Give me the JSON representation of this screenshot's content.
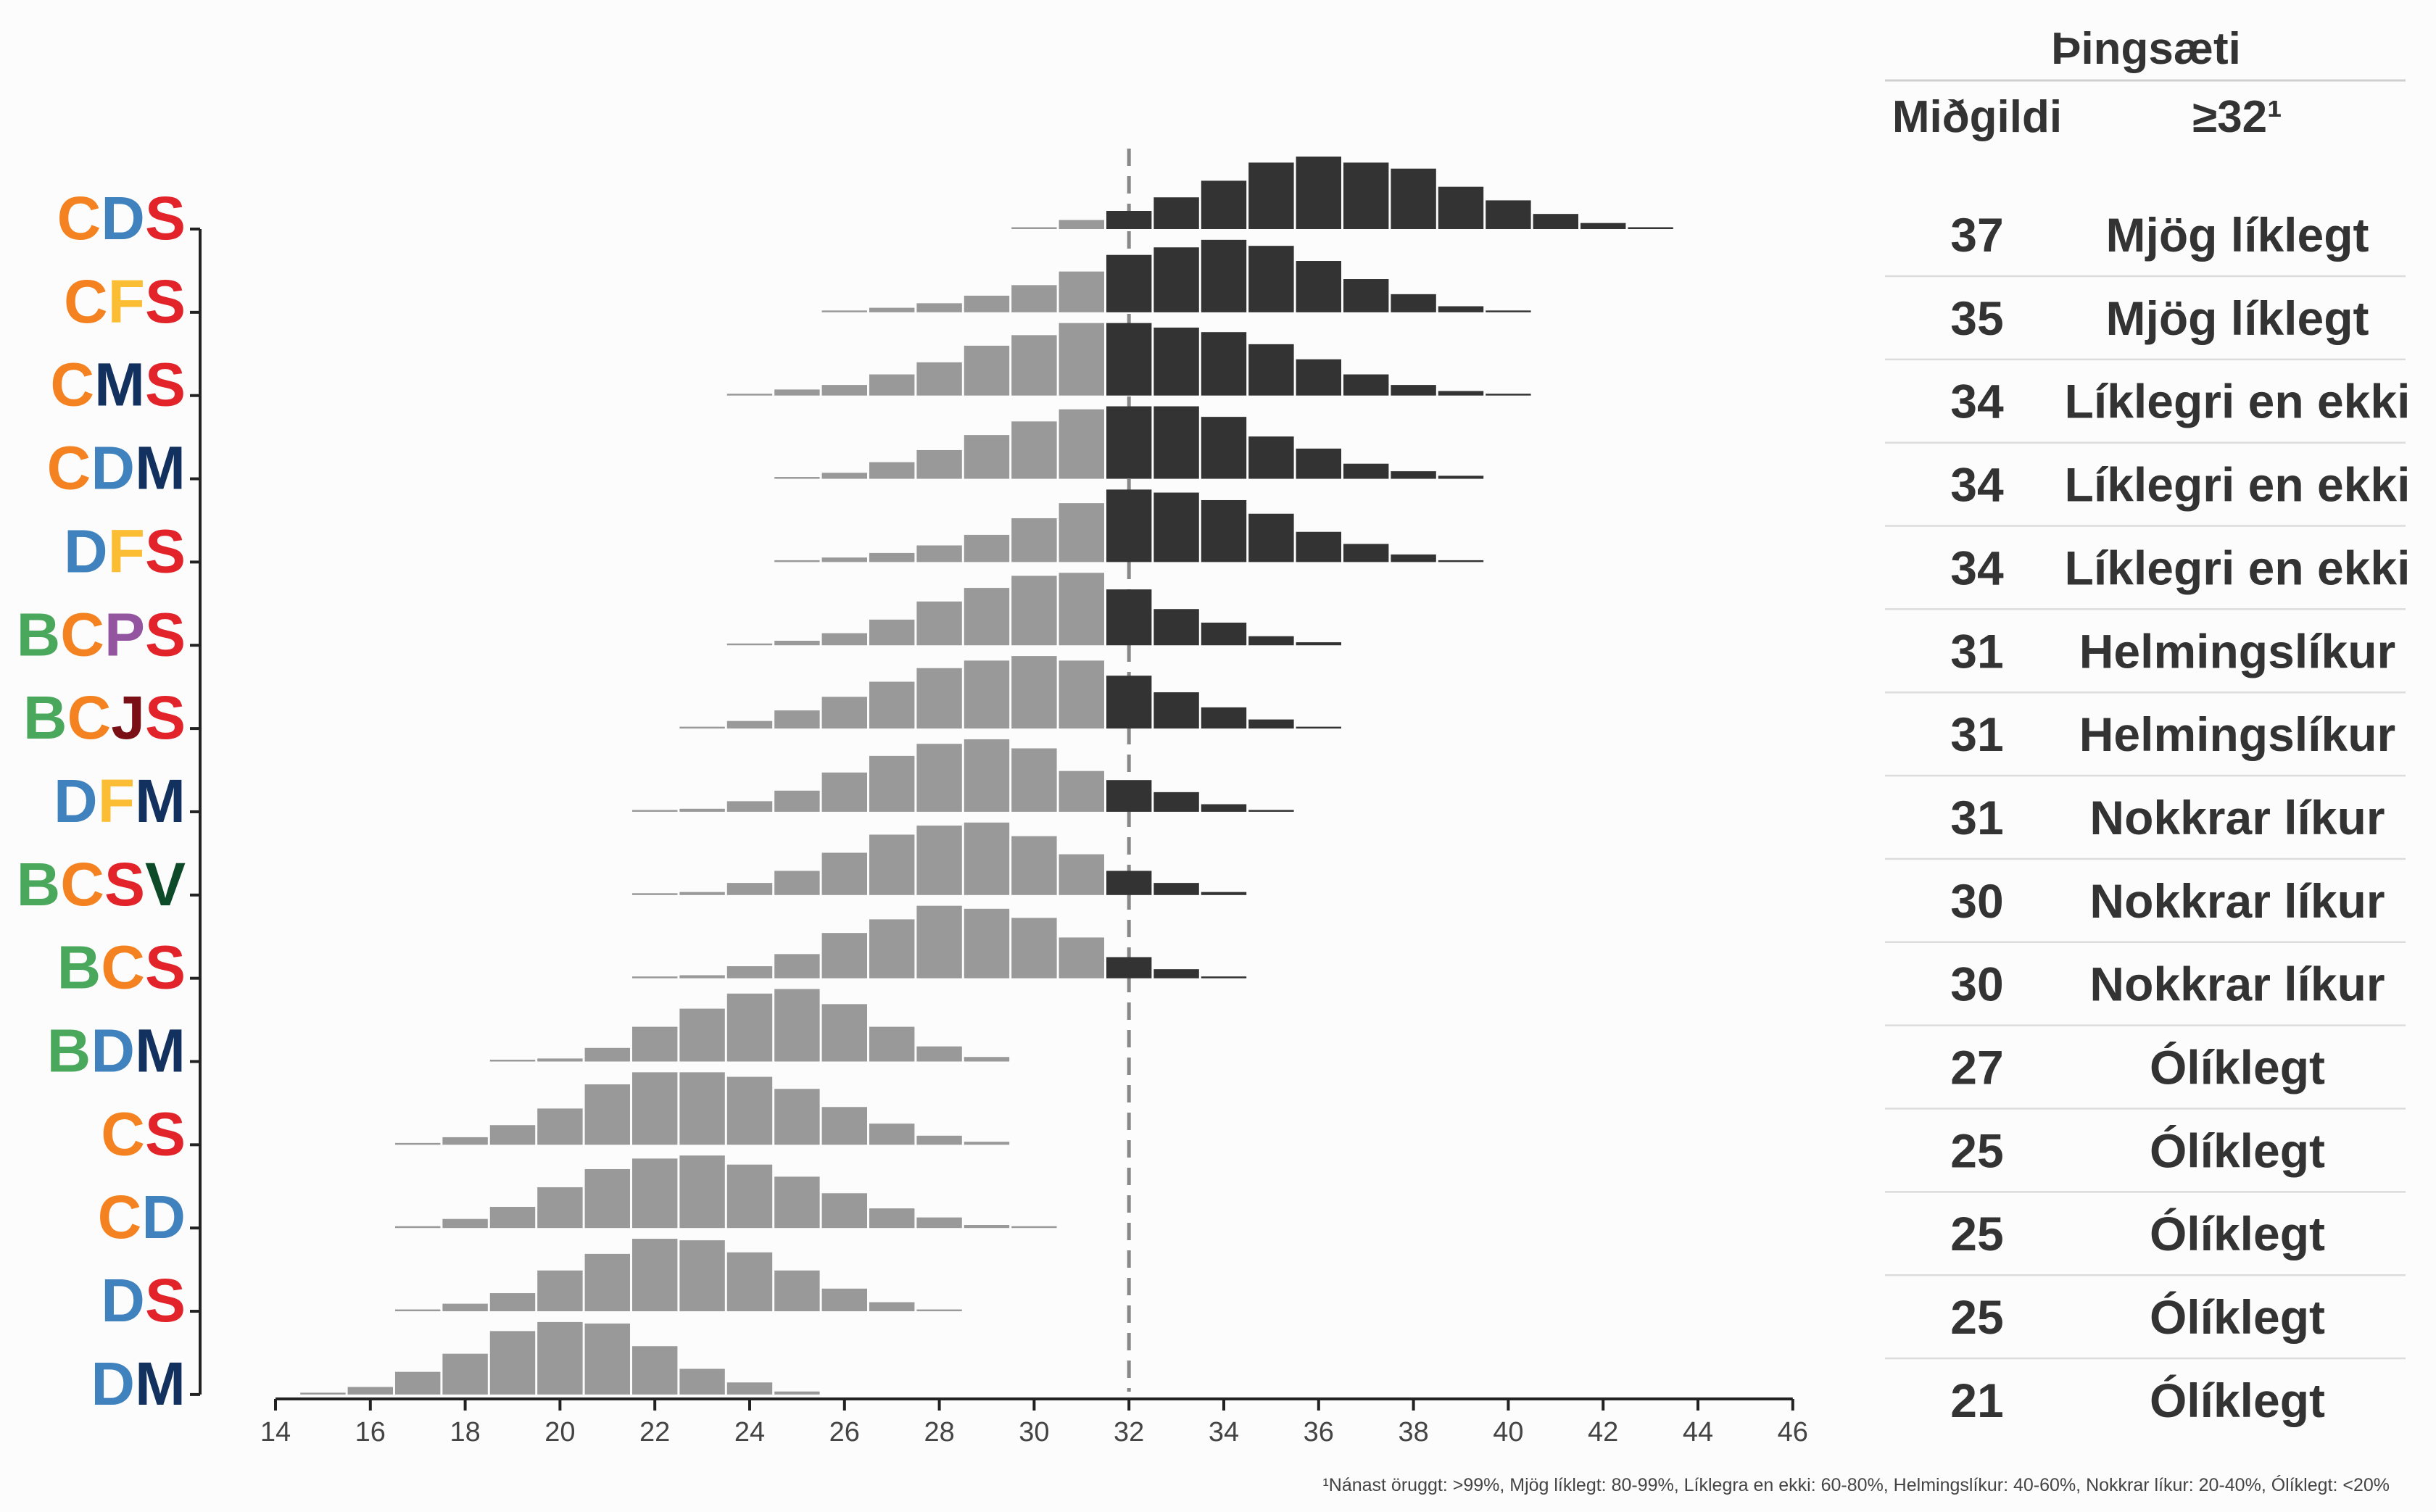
{
  "chart_data": {
    "type": "histogram",
    "x_axis": {
      "ticks": [
        14,
        16,
        18,
        20,
        22,
        24,
        26,
        28,
        30,
        32,
        34,
        36,
        38,
        40,
        42,
        44,
        46
      ],
      "range": [
        14,
        46
      ]
    },
    "threshold": 32,
    "party_colors": {
      "B": "#4aa85c",
      "C": "#f58220",
      "D": "#3f82bd",
      "F": "#fbbd33",
      "J": "#7a1016",
      "M": "#13315e",
      "P": "#9354a0",
      "S": "#e2232a",
      "V": "#0c4a28"
    },
    "colors": {
      "above": "#333333",
      "below": "#999999",
      "threshold_line": "#888888"
    },
    "table_header": {
      "title": "Þingsæti",
      "col_median": "Miðgildi",
      "col_prob": "≥32¹"
    },
    "footnote": "¹Nánast öruggt: >99%, Mjög líklegt: 80-99%, Líklegra en ekki: 60-80%, Helmingslíkur: 40-60%, Nokkrar líkur: 20-40%, Ólíklegt: <20%",
    "rows": [
      {
        "label": "CDS",
        "median": "37",
        "prob": "Mjög líklegt",
        "bins": [
          [
            30,
            1
          ],
          [
            31,
            6
          ],
          [
            32,
            12
          ],
          [
            33,
            21
          ],
          [
            34,
            32
          ],
          [
            35,
            44
          ],
          [
            36,
            48
          ],
          [
            37,
            44
          ],
          [
            38,
            40
          ],
          [
            39,
            28
          ],
          [
            40,
            19
          ],
          [
            41,
            10
          ],
          [
            42,
            4
          ],
          [
            43,
            1
          ]
        ]
      },
      {
        "label": "CFS",
        "median": "35",
        "prob": "Mjög líklegt",
        "bins": [
          [
            26,
            1
          ],
          [
            27,
            3
          ],
          [
            28,
            6
          ],
          [
            29,
            11
          ],
          [
            30,
            18
          ],
          [
            31,
            27
          ],
          [
            32,
            38
          ],
          [
            33,
            43
          ],
          [
            34,
            48
          ],
          [
            35,
            44
          ],
          [
            36,
            34
          ],
          [
            37,
            22
          ],
          [
            38,
            12
          ],
          [
            39,
            4
          ],
          [
            40,
            1
          ]
        ]
      },
      {
        "label": "CMS",
        "median": "34",
        "prob": "Líklegri en ekki",
        "bins": [
          [
            24,
            1
          ],
          [
            25,
            4
          ],
          [
            26,
            7
          ],
          [
            27,
            14
          ],
          [
            28,
            22
          ],
          [
            29,
            33
          ],
          [
            30,
            40
          ],
          [
            31,
            48
          ],
          [
            32,
            48
          ],
          [
            33,
            45
          ],
          [
            34,
            42
          ],
          [
            35,
            34
          ],
          [
            36,
            24
          ],
          [
            37,
            14
          ],
          [
            38,
            7
          ],
          [
            39,
            3
          ],
          [
            40,
            1
          ]
        ]
      },
      {
        "label": "CDM",
        "median": "34",
        "prob": "Líklegri en ekki",
        "bins": [
          [
            25,
            1
          ],
          [
            26,
            4
          ],
          [
            27,
            11
          ],
          [
            28,
            19
          ],
          [
            29,
            29
          ],
          [
            30,
            38
          ],
          [
            31,
            46
          ],
          [
            32,
            48
          ],
          [
            33,
            48
          ],
          [
            34,
            41
          ],
          [
            35,
            28
          ],
          [
            36,
            20
          ],
          [
            37,
            10
          ],
          [
            38,
            5
          ],
          [
            39,
            2
          ]
        ]
      },
      {
        "label": "DFS",
        "median": "34",
        "prob": "Líklegri en ekki",
        "bins": [
          [
            25,
            1
          ],
          [
            26,
            3
          ],
          [
            27,
            6
          ],
          [
            28,
            11
          ],
          [
            29,
            18
          ],
          [
            30,
            29
          ],
          [
            31,
            39
          ],
          [
            32,
            48
          ],
          [
            33,
            46
          ],
          [
            34,
            41
          ],
          [
            35,
            32
          ],
          [
            36,
            20
          ],
          [
            37,
            12
          ],
          [
            38,
            5
          ],
          [
            39,
            1
          ]
        ]
      },
      {
        "label": "BCPS",
        "median": "31",
        "prob": "Helmingslíkur",
        "bins": [
          [
            24,
            1
          ],
          [
            25,
            3
          ],
          [
            26,
            8
          ],
          [
            27,
            17
          ],
          [
            28,
            29
          ],
          [
            29,
            38
          ],
          [
            30,
            46
          ],
          [
            31,
            48
          ],
          [
            32,
            37
          ],
          [
            33,
            24
          ],
          [
            34,
            15
          ],
          [
            35,
            6
          ],
          [
            36,
            2
          ]
        ]
      },
      {
        "label": "BCJS",
        "median": "31",
        "prob": "Helmingslíkur",
        "bins": [
          [
            23,
            1
          ],
          [
            24,
            5
          ],
          [
            25,
            12
          ],
          [
            26,
            21
          ],
          [
            27,
            31
          ],
          [
            28,
            40
          ],
          [
            29,
            45
          ],
          [
            30,
            48
          ],
          [
            31,
            45
          ],
          [
            32,
            35
          ],
          [
            33,
            24
          ],
          [
            34,
            14
          ],
          [
            35,
            6
          ],
          [
            36,
            1
          ]
        ]
      },
      {
        "label": "DFM",
        "median": "31",
        "prob": "Nokkrar líkur",
        "bins": [
          [
            22,
            1
          ],
          [
            23,
            2
          ],
          [
            24,
            7
          ],
          [
            25,
            14
          ],
          [
            26,
            26
          ],
          [
            27,
            37
          ],
          [
            28,
            45
          ],
          [
            29,
            48
          ],
          [
            30,
            42
          ],
          [
            31,
            27
          ],
          [
            32,
            21
          ],
          [
            33,
            13
          ],
          [
            34,
            5
          ],
          [
            35,
            1
          ]
        ]
      },
      {
        "label": "BCSV",
        "median": "30",
        "prob": "Nokkrar líkur",
        "bins": [
          [
            22,
            1
          ],
          [
            23,
            2
          ],
          [
            24,
            8
          ],
          [
            25,
            16
          ],
          [
            26,
            28
          ],
          [
            27,
            40
          ],
          [
            28,
            46
          ],
          [
            29,
            48
          ],
          [
            30,
            39
          ],
          [
            31,
            27
          ],
          [
            32,
            16
          ],
          [
            33,
            8
          ],
          [
            34,
            2
          ]
        ]
      },
      {
        "label": "BCS",
        "median": "30",
        "prob": "Nokkrar líkur",
        "bins": [
          [
            22,
            1
          ],
          [
            23,
            2
          ],
          [
            24,
            8
          ],
          [
            25,
            16
          ],
          [
            26,
            30
          ],
          [
            27,
            39
          ],
          [
            28,
            48
          ],
          [
            29,
            46
          ],
          [
            30,
            40
          ],
          [
            31,
            27
          ],
          [
            32,
            14
          ],
          [
            33,
            6
          ],
          [
            34,
            1
          ]
        ]
      },
      {
        "label": "BDM",
        "median": "27",
        "prob": "Ólíklegt",
        "bins": [
          [
            19,
            1
          ],
          [
            20,
            2
          ],
          [
            21,
            9
          ],
          [
            22,
            23
          ],
          [
            23,
            35
          ],
          [
            24,
            45
          ],
          [
            25,
            48
          ],
          [
            26,
            38
          ],
          [
            27,
            23
          ],
          [
            28,
            10
          ],
          [
            29,
            3
          ]
        ]
      },
      {
        "label": "CS",
        "median": "25",
        "prob": "Ólíklegt",
        "bins": [
          [
            17,
            1
          ],
          [
            18,
            5
          ],
          [
            19,
            13
          ],
          [
            20,
            24
          ],
          [
            21,
            40
          ],
          [
            22,
            48
          ],
          [
            23,
            48
          ],
          [
            24,
            45
          ],
          [
            25,
            37
          ],
          [
            26,
            25
          ],
          [
            27,
            14
          ],
          [
            28,
            6
          ],
          [
            29,
            2
          ]
        ]
      },
      {
        "label": "CD",
        "median": "25",
        "prob": "Ólíklegt",
        "bins": [
          [
            17,
            1
          ],
          [
            18,
            6
          ],
          [
            19,
            14
          ],
          [
            20,
            27
          ],
          [
            21,
            39
          ],
          [
            22,
            46
          ],
          [
            23,
            48
          ],
          [
            24,
            42
          ],
          [
            25,
            34
          ],
          [
            26,
            23
          ],
          [
            27,
            13
          ],
          [
            28,
            7
          ],
          [
            29,
            2
          ],
          [
            30,
            1
          ]
        ]
      },
      {
        "label": "DS",
        "median": "25",
        "prob": "Ólíklegt",
        "bins": [
          [
            17,
            1
          ],
          [
            18,
            5
          ],
          [
            19,
            12
          ],
          [
            20,
            27
          ],
          [
            21,
            38
          ],
          [
            22,
            48
          ],
          [
            23,
            47
          ],
          [
            24,
            39
          ],
          [
            25,
            27
          ],
          [
            26,
            15
          ],
          [
            27,
            6
          ],
          [
            28,
            1
          ]
        ]
      },
      {
        "label": "DM",
        "median": "21",
        "prob": "Ólíklegt",
        "bins": [
          [
            15,
            1
          ],
          [
            16,
            5
          ],
          [
            17,
            15
          ],
          [
            18,
            27
          ],
          [
            19,
            42
          ],
          [
            20,
            48
          ],
          [
            21,
            47
          ],
          [
            22,
            32
          ],
          [
            23,
            17
          ],
          [
            24,
            8
          ],
          [
            25,
            2
          ]
        ]
      }
    ]
  }
}
